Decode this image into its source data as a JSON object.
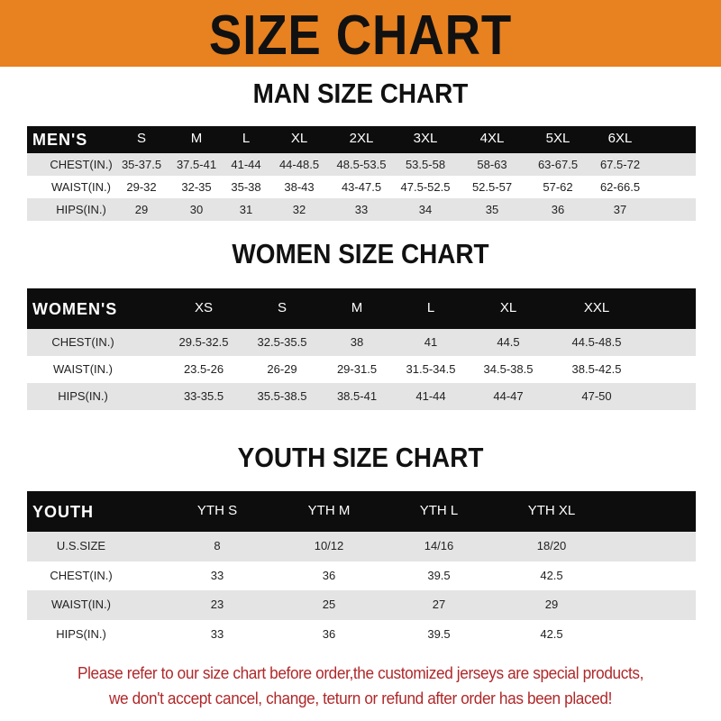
{
  "title": "SIZE CHART",
  "colors": {
    "banner": "#e8811f",
    "header": "#0d0d0d",
    "note": "#b0282a"
  },
  "men": {
    "title": "MAN SIZE CHART",
    "header": [
      "MEN'S",
      "S",
      "M",
      "L",
      "XL",
      "2XL",
      "3XL",
      "4XL",
      "5XL",
      "6XL"
    ],
    "rows": [
      [
        "CHEST(IN.)",
        "35-37.5",
        "37.5-41",
        "41-44",
        "44-48.5",
        "48.5-53.5",
        "53.5-58",
        "58-63",
        "63-67.5",
        "67.5-72"
      ],
      [
        "WAIST(IN.)",
        "29-32",
        "32-35",
        "35-38",
        "38-43",
        "43-47.5",
        "47.5-52.5",
        "52.5-57",
        "57-62",
        "62-66.5"
      ],
      [
        "HIPS(IN.)",
        "29",
        "30",
        "31",
        "32",
        "33",
        "34",
        "35",
        "36",
        "37"
      ]
    ]
  },
  "women": {
    "title": "WOMEN SIZE CHART",
    "header": [
      "WOMEN'S",
      "XS",
      "S",
      "M",
      "L",
      "XL",
      "XXL"
    ],
    "rows": [
      [
        "CHEST(IN.)",
        "29.5-32.5",
        "32.5-35.5",
        "38",
        "41",
        "44.5",
        "44.5-48.5"
      ],
      [
        "WAIST(IN.)",
        "23.5-26",
        "26-29",
        "29-31.5",
        "31.5-34.5",
        "34.5-38.5",
        "38.5-42.5"
      ],
      [
        "HIPS(IN.)",
        "33-35.5",
        "35.5-38.5",
        "38.5-41",
        "41-44",
        "44-47",
        "47-50"
      ]
    ]
  },
  "youth": {
    "title": "YOUTH SIZE CHART",
    "header": [
      "YOUTH",
      "YTH S",
      "YTH M",
      "YTH L",
      "YTH XL"
    ],
    "rows": [
      [
        "U.S.SIZE",
        "8",
        "10/12",
        "14/16",
        "18/20"
      ],
      [
        "CHEST(IN.)",
        "33",
        "36",
        "39.5",
        "42.5"
      ],
      [
        "WAIST(IN.)",
        "23",
        "25",
        "27",
        "29"
      ],
      [
        "HIPS(IN.)",
        "33",
        "36",
        "39.5",
        "42.5"
      ]
    ]
  },
  "note": {
    "line1": "Please refer to our size chart before order,the customized jerseys are special products,",
    "line2": "we don't accept cancel, change, teturn or refund after order has been placed!"
  }
}
